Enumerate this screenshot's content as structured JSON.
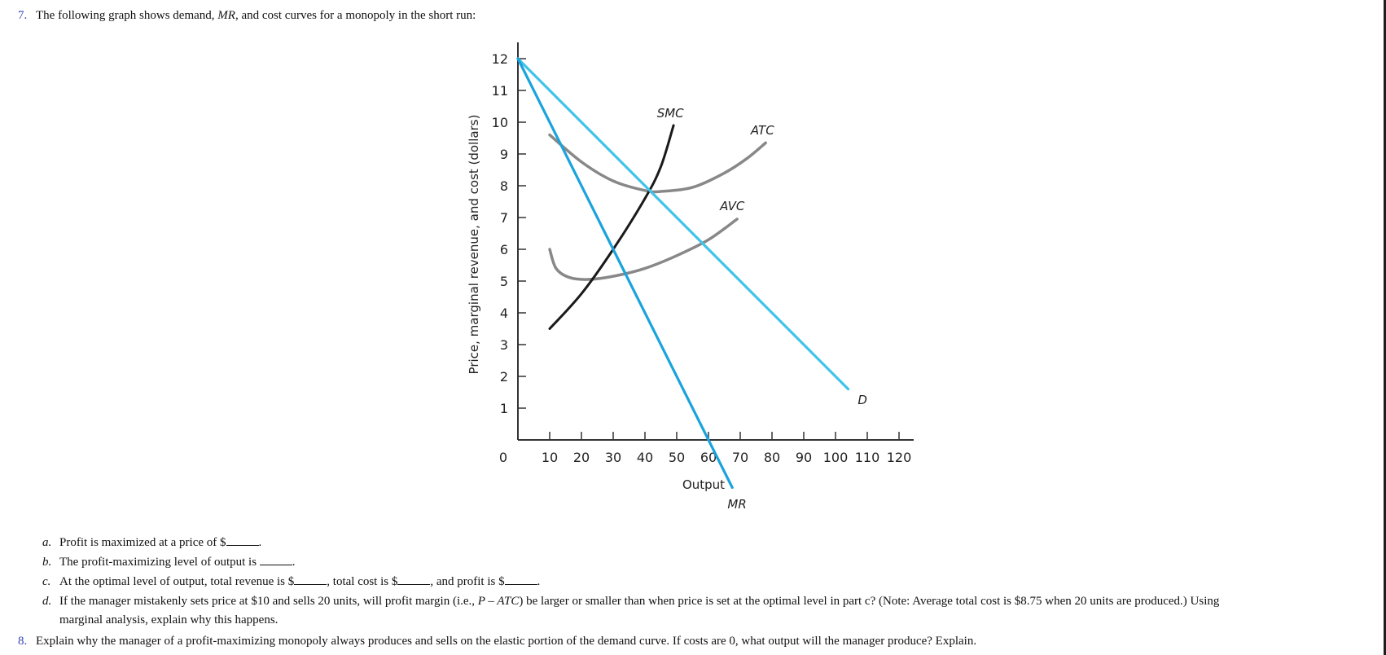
{
  "question7": {
    "number": "7.",
    "text_before": "The following graph shows demand, ",
    "text_italic": "MR",
    "text_after": ", and cost curves for a monopoly in the short run:"
  },
  "subquestions": {
    "a": {
      "letter": "a.",
      "text": "Profit is maximized at a price of $",
      "after": "."
    },
    "b": {
      "letter": "b.",
      "text": "The profit-maximizing level of output is ",
      "after": "."
    },
    "c": {
      "letter": "c.",
      "text1": "At the optimal level of output, total revenue is $",
      "text2": ", total cost is $",
      "text3": ", and profit is $",
      "after": "."
    },
    "d": {
      "letter": "d.",
      "text1": "If the manager mistakenly sets price at $10 and sells 20 units, will profit margin (i.e., ",
      "italic": "P – ATC",
      "text2": ") be larger or smaller than when price is set at the optimal level in part c? (Note: Average total cost is $8.75 when 20 units are produced.) Using",
      "line2": "marginal analysis, explain why this happens."
    }
  },
  "question8": {
    "number": "8.",
    "text": "Explain why the manager of a profit-maximizing monopoly always produces and sells on the elastic portion of the demand curve. If costs are 0, what output will the manager produce? Explain."
  },
  "colors": {
    "demand": "#3ec3ea",
    "mr": "#1aa3dc",
    "smc": "#1a1a1a",
    "atc": "#888888",
    "avc": "#888888",
    "axis": "#333333",
    "question_number": "#3646b8"
  },
  "chart_data": {
    "type": "line",
    "title": "",
    "xlabel": "Output",
    "ylabel": "Price, marginal revenue, and cost (dollars)",
    "xlim": [
      0,
      120
    ],
    "ylim": [
      0,
      12.5
    ],
    "x_ticks": [
      10,
      20,
      30,
      40,
      50,
      60,
      70,
      80,
      90,
      100,
      110,
      120
    ],
    "y_ticks": [
      1,
      2,
      3,
      4,
      5,
      6,
      7,
      8,
      9,
      10,
      11,
      12
    ],
    "origin_label": "0",
    "grid": false,
    "series": [
      {
        "name": "D",
        "label": "D",
        "points": [
          [
            0,
            12
          ],
          [
            104,
            1.6
          ]
        ]
      },
      {
        "name": "MR",
        "label": "MR",
        "points": [
          [
            0,
            12
          ],
          [
            67.5,
            -1.5
          ]
        ]
      },
      {
        "name": "SMC",
        "label": "SMC",
        "points": [
          [
            10,
            3.5
          ],
          [
            20,
            4.6
          ],
          [
            30,
            6.0
          ],
          [
            40,
            7.6
          ],
          [
            45,
            8.6
          ],
          [
            49,
            9.9
          ]
        ]
      },
      {
        "name": "ATC",
        "label": "ATC",
        "points": [
          [
            10,
            9.6
          ],
          [
            20,
            8.75
          ],
          [
            30,
            8.15
          ],
          [
            40,
            7.85
          ],
          [
            45,
            7.82
          ],
          [
            55,
            7.95
          ],
          [
            65,
            8.4
          ],
          [
            72,
            8.85
          ],
          [
            78,
            9.35
          ]
        ]
      },
      {
        "name": "AVC",
        "label": "AVC",
        "points": [
          [
            10,
            6.0
          ],
          [
            12,
            5.4
          ],
          [
            16,
            5.12
          ],
          [
            22,
            5.05
          ],
          [
            30,
            5.15
          ],
          [
            40,
            5.4
          ],
          [
            50,
            5.8
          ],
          [
            60,
            6.3
          ],
          [
            69,
            6.95
          ]
        ]
      }
    ]
  }
}
